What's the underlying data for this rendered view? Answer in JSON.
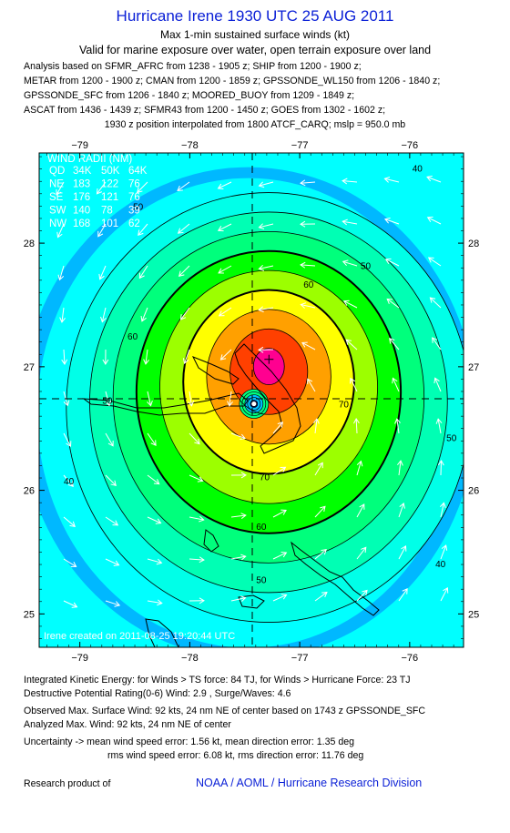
{
  "header": {
    "title": "Hurricane Irene 1930 UTC 25 AUG 2011",
    "subtitle": "Max 1-min sustained surface winds (kt)",
    "valid_line": "Valid for marine exposure over water, open terrain exposure over land"
  },
  "analysis": {
    "lines": [
      "Analysis based on SFMR_AFRC from 1238 - 1905 z; SHIP from 1200 - 1900 z;",
      "METAR from 1200 - 1900 z; CMAN from 1200 - 1859 z; GPSSONDE_WL150 from 1206 - 1840 z;",
      "GPSSONDE_SFC from 1206 - 1840 z; MOORED_BUOY from 1209 - 1849 z;",
      "ASCAT from 1436 - 1439 z; SFMR43 from 1200 - 1450 z; GOES from 1302 - 1602 z;"
    ],
    "position_note": "1930 z position interpolated from 1800 ATCF_CARQ; mslp = 950.0 mb"
  },
  "chart_data": {
    "type": "contour",
    "x_ticks": [
      "−79",
      "−78",
      "−77",
      "−76"
    ],
    "y_ticks": [
      "28",
      "27",
      "26",
      "25"
    ],
    "x_tick_values": [
      -79,
      -78,
      -77,
      -76
    ],
    "y_tick_values": [
      28,
      27,
      26,
      25
    ],
    "xlim": [
      -79.37,
      -75.51
    ],
    "ylim": [
      24.73,
      28.73
    ],
    "center": {
      "lon": -77.4,
      "lat": 26.7
    },
    "max_wind_location": {
      "lon": -77.28,
      "lat": 27.06
    },
    "contour_levels": [
      10,
      20,
      30,
      40,
      50,
      60,
      70,
      80,
      90
    ],
    "contour_labels": [
      {
        "text": "40",
        "lon": -75.93,
        "lat": 28.58
      },
      {
        "text": "50",
        "lon": -78.47,
        "lat": 28.27
      },
      {
        "text": "60",
        "lon": -76.92,
        "lat": 27.64
      },
      {
        "text": "50",
        "lon": -76.4,
        "lat": 27.79
      },
      {
        "text": "60",
        "lon": -78.52,
        "lat": 27.22
      },
      {
        "text": "70",
        "lon": -76.6,
        "lat": 26.67
      },
      {
        "text": "50",
        "lon": -78.75,
        "lat": 26.7
      },
      {
        "text": "40",
        "lon": -79.1,
        "lat": 26.05
      },
      {
        "text": "70",
        "lon": -77.32,
        "lat": 26.08
      },
      {
        "text": "60",
        "lon": -77.35,
        "lat": 25.68
      },
      {
        "text": "50",
        "lon": -77.35,
        "lat": 25.25
      },
      {
        "text": "40",
        "lon": -75.72,
        "lat": 25.38
      },
      {
        "text": "50",
        "lon": -75.62,
        "lat": 26.4
      }
    ],
    "colors": {
      "background": "#00ffff",
      "outer": "#00b8ff",
      "bands": [
        "#00ffe8",
        "#00ffb4",
        "#00ff7c",
        "#00ff00",
        "#9cff00",
        "#ffff00",
        "#ffa000",
        "#ff4000",
        "#ff0090"
      ],
      "contour_line": "#000000",
      "arrow": "#ffffff"
    }
  },
  "wind_radii": {
    "title": "WIND RADII (NM)",
    "header": [
      "QD",
      "34K",
      "50K",
      "64K"
    ],
    "rows": [
      [
        "NE",
        "183",
        "122",
        "76"
      ],
      [
        "SE",
        "176",
        "121",
        "76"
      ],
      [
        "SW",
        "140",
        "78",
        "39"
      ],
      [
        "NW",
        "168",
        "101",
        "62"
      ]
    ]
  },
  "credit_overlay": "Irene   created on 2011-08-25   19:20:44 UTC",
  "footer": {
    "ike": "Integrated Kinetic Energy:  for Winds > TS force: 84 TJ,  for Winds > Hurricane Force: 23 TJ",
    "dpr": "Destructive Potential Rating(0-6)   Wind: 2.9 , Surge/Waves: 4.6",
    "observed": "Observed Max. Surface Wind: 92 kts, 24 nm NE of center based on 1743 z GPSSONDE_SFC",
    "analyzed": "Analyzed Max. Wind: 92 kts, 24 nm NE of center",
    "uncertainty1": "Uncertainty -> mean wind speed error: 1.56 kt,   mean direction error: 1.35 deg",
    "uncertainty2": "rms wind speed error: 6.08 kt,  rms direction error: 11.76 deg",
    "research": "Research product of",
    "org": "NOAA / AOML / Hurricane Research Division"
  }
}
